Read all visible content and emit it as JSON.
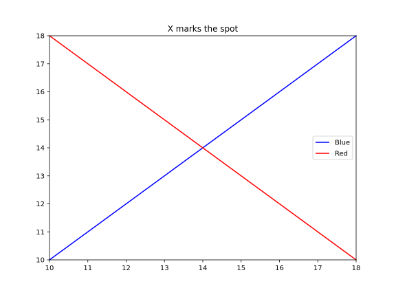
{
  "chart_data": {
    "type": "line",
    "title": "X marks the spot",
    "xlim": [
      10,
      18
    ],
    "ylim": [
      10,
      18
    ],
    "x_ticks": [
      10,
      11,
      12,
      13,
      14,
      15,
      16,
      17,
      18
    ],
    "y_ticks": [
      10,
      11,
      12,
      13,
      14,
      15,
      16,
      17,
      18
    ],
    "grid": false,
    "legend_placement": "center-right",
    "series": [
      {
        "name": "Blue",
        "color": "#0000ff",
        "x": [
          10,
          18
        ],
        "y": [
          10,
          18
        ]
      },
      {
        "name": "Red",
        "color": "#ff0000",
        "x": [
          10,
          18
        ],
        "y": [
          18,
          10
        ]
      }
    ]
  }
}
